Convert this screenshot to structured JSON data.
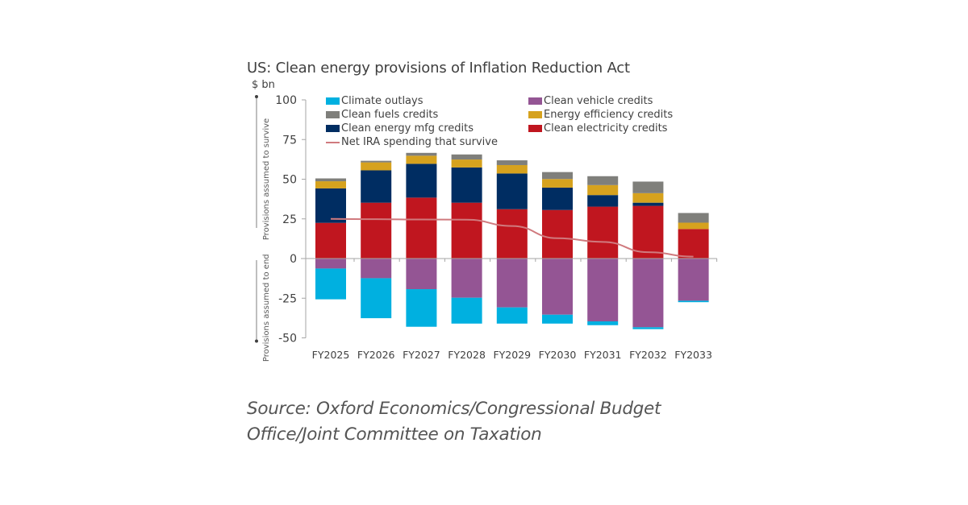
{
  "chart_data": {
    "type": "bar",
    "stacked": true,
    "title": "US: Clean energy provisions of Inflation Reduction Act",
    "ylabel": "$ bn",
    "ylim": [
      -50,
      100
    ],
    "yticks": [
      100,
      75,
      50,
      25,
      0,
      -25,
      -50
    ],
    "side_labels": {
      "upper": "Provisions assumed to survive",
      "lower": "Provisions assumed to end"
    },
    "categories": [
      "FY2025",
      "FY2026",
      "FY2027",
      "FY2028",
      "FY2029",
      "FY2030",
      "FY2031",
      "FY2032",
      "FY2033"
    ],
    "series": [
      {
        "name": "Clean electricity credits",
        "color": "#c0161f",
        "values": [
          22.5,
          35.2,
          38.4,
          35.2,
          31.1,
          30.6,
          32.7,
          33.2,
          18.6
        ]
      },
      {
        "name": "Clean energy mfg credits",
        "color": "#002d62",
        "values": [
          21.7,
          20.4,
          21.3,
          22.2,
          22.5,
          14.1,
          7.3,
          2.0,
          0
        ]
      },
      {
        "name": "Energy efficiency credits",
        "color": "#d6a21e",
        "values": [
          4.5,
          5.0,
          5.1,
          5.0,
          5.3,
          5.4,
          6.3,
          6.0,
          4.0
        ]
      },
      {
        "name": "Clean fuels credits",
        "color": "#7f7f7b",
        "values": [
          1.8,
          1.0,
          1.8,
          3.2,
          3.0,
          4.4,
          5.6,
          7.3,
          6.1
        ]
      },
      {
        "name": "Clean vehicle credits",
        "color": "#945594",
        "values": [
          -6.3,
          -12.4,
          -19.3,
          -24.7,
          -30.8,
          -35.4,
          -39.6,
          -43.3,
          -26.6
        ]
      },
      {
        "name": "Climate outlays",
        "color": "#00b0e0",
        "values": [
          -19.4,
          -25.2,
          -23.7,
          -16.3,
          -10.2,
          -5.6,
          -2.4,
          -1.2,
          -0.9
        ]
      }
    ],
    "line": {
      "name": "Net IRA spending that survive",
      "color": "#d07a7e",
      "values": [
        25,
        24.8,
        24.6,
        24.5,
        20.5,
        12.8,
        10.5,
        4,
        1.2
      ]
    },
    "legend": [
      {
        "name": "Climate outlays",
        "color": "#00b0e0",
        "kind": "box"
      },
      {
        "name": "Clean vehicle credits",
        "color": "#945594",
        "kind": "box"
      },
      {
        "name": "Clean fuels credits",
        "color": "#7f7f7b",
        "kind": "box"
      },
      {
        "name": "Energy efficiency credits",
        "color": "#d6a21e",
        "kind": "box"
      },
      {
        "name": "Clean energy mfg credits",
        "color": "#002d62",
        "kind": "box"
      },
      {
        "name": "Clean electricity credits",
        "color": "#c0161f",
        "kind": "box"
      },
      {
        "name": "Net IRA spending that survive",
        "color": "#d07a7e",
        "kind": "line"
      }
    ],
    "legend_placement": "top"
  },
  "source": {
    "line1": "Source: Oxford Economics/Congressional Budget",
    "line2": "Office/Joint Committee on Taxation"
  }
}
